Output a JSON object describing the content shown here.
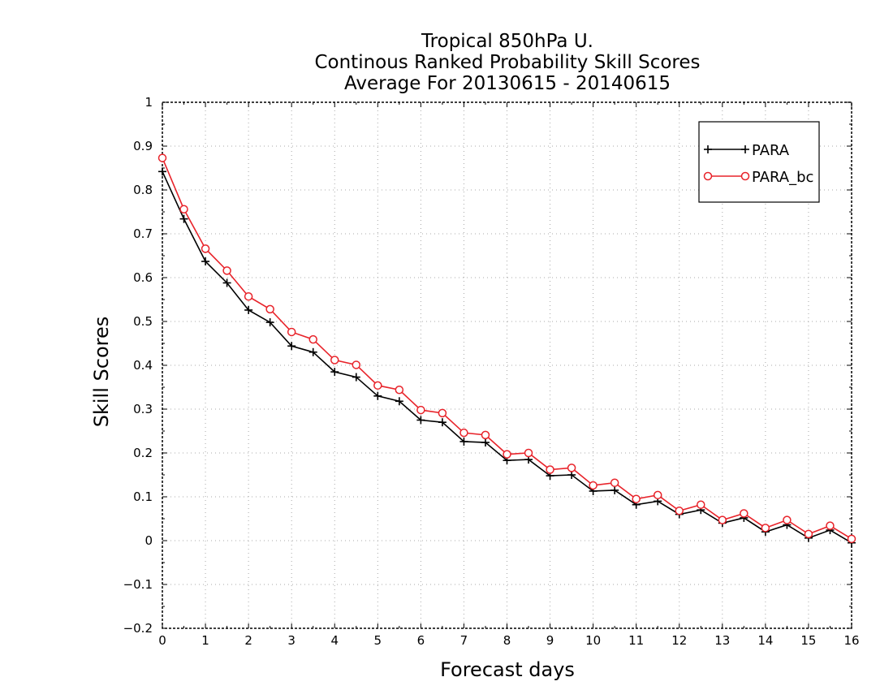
{
  "chart_data": {
    "type": "line",
    "title": [
      "Tropical 850hPa U.",
      "Continous Ranked Probability Skill Scores",
      "Average For 20130615 - 20140615"
    ],
    "xlabel": "Forecast days",
    "ylabel": "Skill Scores",
    "xlim": [
      0,
      16
    ],
    "ylim": [
      -0.2,
      1
    ],
    "xticks": [
      "0",
      "1",
      "2",
      "3",
      "4",
      "5",
      "6",
      "7",
      "8",
      "9",
      "10",
      "11",
      "12",
      "13",
      "14",
      "15",
      "16"
    ],
    "yticks": [
      "−0.2",
      "−0.1",
      "0",
      "0.1",
      "0.2",
      "0.3",
      "0.4",
      "0.5",
      "0.6",
      "0.7",
      "0.8",
      "0.9",
      "1"
    ],
    "grid": true,
    "legend_position": "top-right",
    "x": [
      0,
      0.5,
      1,
      1.5,
      2,
      2.5,
      3,
      3.5,
      4,
      4.5,
      5,
      5.5,
      6,
      6.5,
      7,
      7.5,
      8,
      8.5,
      9,
      9.5,
      10,
      10.5,
      11,
      11.5,
      12,
      12.5,
      13,
      13.5,
      14,
      14.5,
      15,
      15.5,
      16
    ],
    "series": [
      {
        "name": "PARA",
        "color": "#000000",
        "marker": "plus",
        "values": [
          0.842,
          0.734,
          0.637,
          0.588,
          0.526,
          0.498,
          0.444,
          0.43,
          0.385,
          0.373,
          0.33,
          0.318,
          0.275,
          0.27,
          0.226,
          0.224,
          0.183,
          0.185,
          0.148,
          0.15,
          0.113,
          0.115,
          0.082,
          0.09,
          0.06,
          0.07,
          0.04,
          0.052,
          0.02,
          0.036,
          0.006,
          0.024,
          -0.005
        ]
      },
      {
        "name": "PARA_bc",
        "color": "#e8232a",
        "marker": "circle",
        "values": [
          0.873,
          0.756,
          0.666,
          0.616,
          0.557,
          0.528,
          0.476,
          0.459,
          0.412,
          0.401,
          0.354,
          0.344,
          0.298,
          0.291,
          0.246,
          0.241,
          0.197,
          0.2,
          0.162,
          0.166,
          0.126,
          0.132,
          0.095,
          0.104,
          0.068,
          0.082,
          0.047,
          0.062,
          0.029,
          0.047,
          0.015,
          0.034,
          0.004
        ]
      }
    ]
  }
}
